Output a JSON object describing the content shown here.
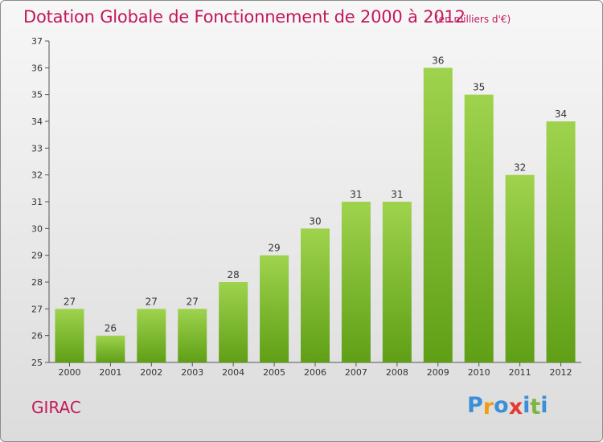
{
  "header": {
    "title": "Dotation Globale de Fonctionnement de 2000 à 2012",
    "unit_note": "(en milliers d'€)"
  },
  "footer": {
    "commune": "GIRAC",
    "logo_letters": [
      "P",
      "r",
      "o",
      "x",
      "i",
      "t",
      "i"
    ],
    "logo_colors": [
      "#3b8fd6",
      "#f39c12",
      "#3b8fd6",
      "#e53935",
      "#3b8fd6",
      "#7cb342",
      "#3b8fd6"
    ]
  },
  "chart_data": {
    "type": "bar",
    "title": "Dotation Globale de Fonctionnement de 2000 à 2012",
    "subtitle": "(en milliers d'€)",
    "categories": [
      "2000",
      "2001",
      "2002",
      "2003",
      "2004",
      "2005",
      "2006",
      "2007",
      "2008",
      "2009",
      "2010",
      "2011",
      "2012"
    ],
    "values": [
      27,
      26,
      27,
      27,
      28,
      29,
      30,
      31,
      31,
      36,
      35,
      32,
      34
    ],
    "ylim": [
      25,
      37
    ],
    "yticks": [
      25,
      26,
      27,
      28,
      29,
      30,
      31,
      32,
      33,
      34,
      35,
      36,
      37
    ],
    "xlabel": "",
    "ylabel": "",
    "grid": false,
    "legend": "none",
    "bar_color_top": "#9fd34e",
    "bar_color_bottom": "#5f9f16",
    "data_labels": true
  }
}
